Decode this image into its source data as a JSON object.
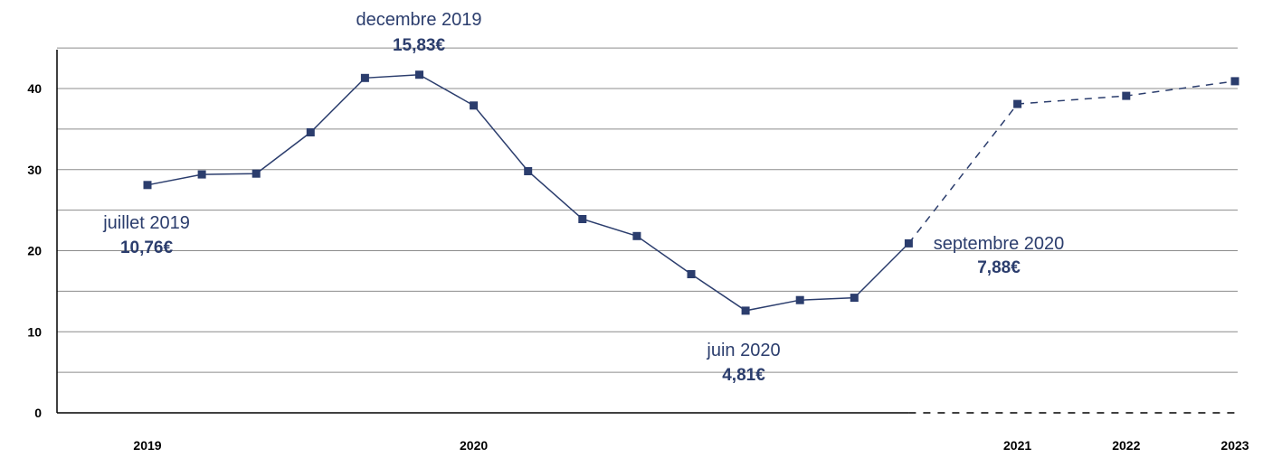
{
  "chart_data": {
    "type": "line",
    "yticks": [
      0,
      10,
      20,
      30,
      40
    ],
    "ylim": [
      0,
      45
    ],
    "grid": true,
    "x_tick_labels": [
      {
        "x": 1.5,
        "label": "2019"
      },
      {
        "x": 7.5,
        "label": "2020"
      },
      {
        "x": 17.5,
        "label": "2021"
      },
      {
        "x": 19.5,
        "label": "2022"
      },
      {
        "x": 21.5,
        "label": "2023"
      }
    ],
    "series": [
      {
        "style": "solid",
        "color": "#2b3d6d",
        "x": [
          1.5,
          2.5,
          3.5,
          4.5,
          5.5,
          6.5,
          7.5,
          8.5,
          9.5,
          10.5,
          11.5,
          12.5,
          13.5,
          14.5,
          15.5
        ],
        "values": [
          28.1,
          29.4,
          29.5,
          34.6,
          41.3,
          41.7,
          37.9,
          29.8,
          23.9,
          21.8,
          17.1,
          12.6,
          13.9,
          14.2,
          20.9
        ]
      },
      {
        "style": "dashed",
        "color": "#2b3d6d",
        "x": [
          15.5,
          17.5,
          19.5,
          21.5
        ],
        "values": [
          20.9,
          38.1,
          39.1,
          40.9
        ]
      }
    ],
    "baseline_dashed_from_x": 15.5,
    "annotations": [
      {
        "label": "decembre 2019",
        "value": "15,83€"
      },
      {
        "label": "juillet 2019",
        "value": "10,76€"
      },
      {
        "label": "juin 2020",
        "value": "4,81€"
      },
      {
        "label": "septembre 2020",
        "value": "7,88€"
      }
    ]
  }
}
